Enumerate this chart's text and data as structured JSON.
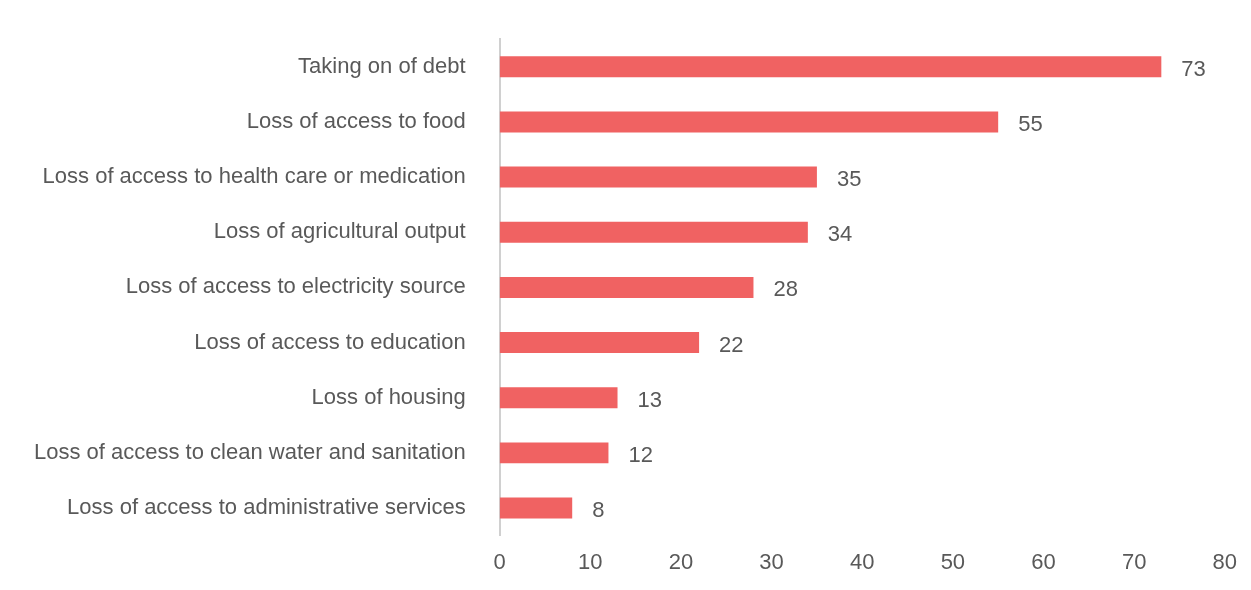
{
  "chart_data": {
    "type": "bar",
    "orientation": "horizontal",
    "categories": [
      "Taking on of debt",
      "Loss of access to food",
      "Loss of access to health care or medication",
      "Loss of agricultural output",
      "Loss of access to electricity source",
      "Loss of access to education",
      "Loss of housing",
      "Loss of access to clean water and sanitation",
      "Loss of access to administrative services"
    ],
    "values": [
      73,
      55,
      35,
      34,
      28,
      22,
      13,
      12,
      8
    ],
    "color": "#f06262",
    "xlim": [
      0,
      80
    ],
    "xticks": [
      0,
      10,
      20,
      30,
      40,
      50,
      60,
      70,
      80
    ],
    "grid": false,
    "legend": false,
    "data_labels": true
  }
}
